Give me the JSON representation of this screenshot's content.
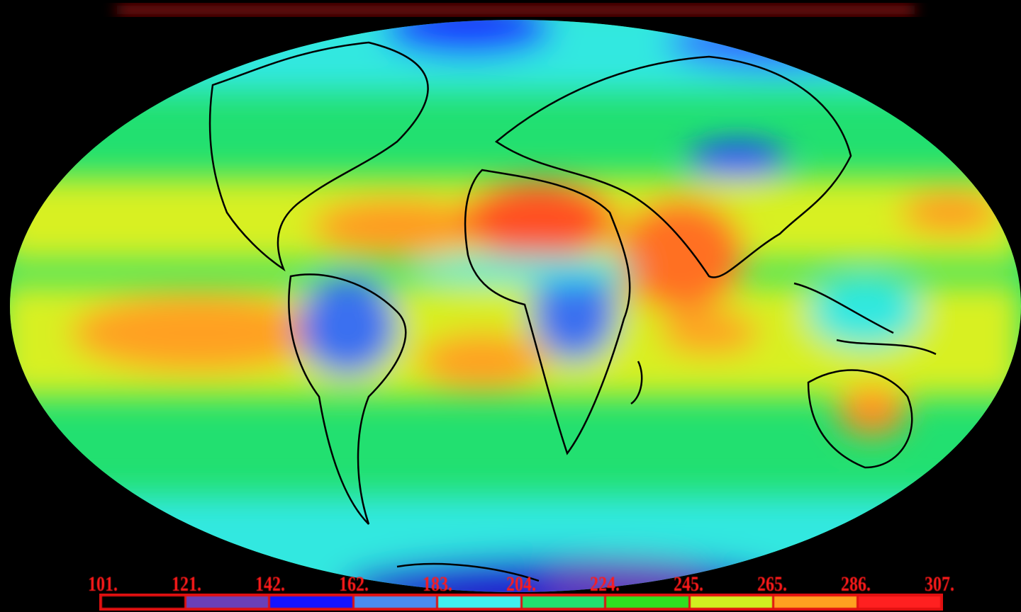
{
  "colorbar": {
    "tick_labels": [
      "101.",
      "121.",
      "142.",
      "162.",
      "183.",
      "204.",
      "224.",
      "245.",
      "265.",
      "286.",
      "307."
    ],
    "colors": [
      "#000000",
      "#6a40b8",
      "#1414ff",
      "#4a8cf0",
      "#40f0ee",
      "#22e070",
      "#30e020",
      "#d0f020",
      "#ffa020",
      "#ff2020"
    ]
  },
  "map": {
    "projection": "mollweide",
    "background": "#000000",
    "palette": {
      "polar": "#1a3cff",
      "high_lat": "#30e8e0",
      "mid": "#22e070",
      "subtropic": "#d8f020",
      "desert": "#ff9020",
      "hot": "#ff5020",
      "convective": "#3a70f0"
    }
  }
}
